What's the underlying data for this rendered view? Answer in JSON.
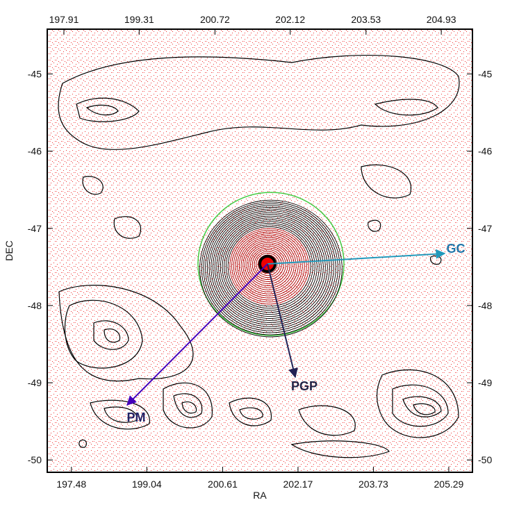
{
  "chart_data": {
    "type": "contour",
    "xlabel": "RA",
    "ylabel": "DEC",
    "xlim": [
      196.98,
      205.78
    ],
    "xticks": [
      197.48,
      199.04,
      200.61,
      202.17,
      203.73,
      205.29
    ],
    "x2lim": [
      197.6,
      205.51
    ],
    "x2ticks": [
      197.91,
      199.31,
      200.72,
      202.12,
      203.53,
      204.93
    ],
    "ylim": [
      -50.16,
      -44.42
    ],
    "yticks": [
      -45,
      -46,
      -47,
      -48,
      -49,
      -50
    ],
    "annotations": [
      "GC",
      "PGP",
      "PM"
    ]
  }
}
